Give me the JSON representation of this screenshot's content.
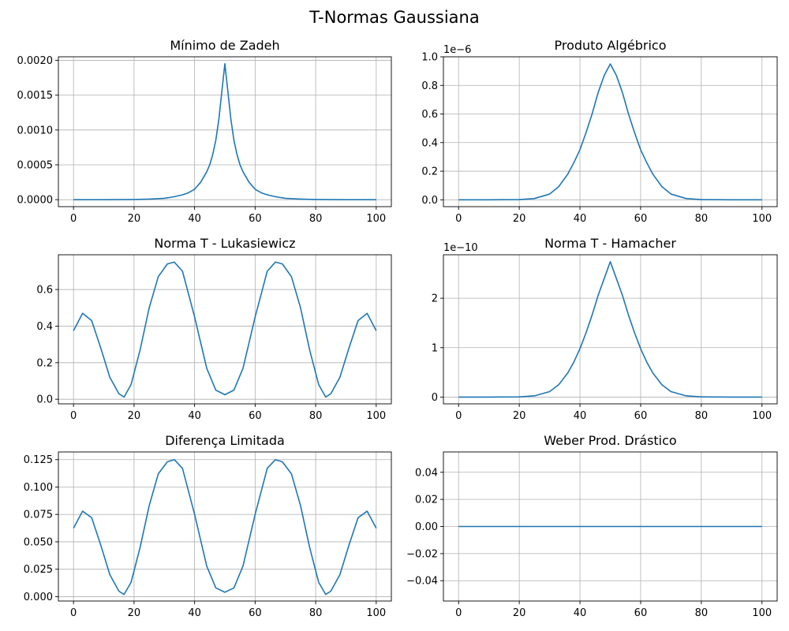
{
  "figure_title": "T-Normas Gaussiana",
  "colors": {
    "line": "#1f77b4",
    "grid": "#b0b0b0",
    "axes": "#000000"
  },
  "chart_data": [
    {
      "type": "line",
      "title": "Mínimo de Zadeh",
      "xlim": [
        -5,
        105
      ],
      "ylim": [
        -0.0001,
        0.00205
      ],
      "xticks": [
        0,
        20,
        40,
        60,
        80,
        100
      ],
      "yticks": [
        0,
        0.0005,
        0.001,
        0.0015,
        0.002
      ],
      "ytick_labels": [
        "0.0000",
        "0.0005",
        "0.0010",
        "0.0015",
        "0.0020"
      ],
      "offset_label": "",
      "grid": true,
      "x": [
        0,
        10,
        20,
        25,
        30,
        33,
        36,
        38,
        40,
        42,
        44,
        45,
        46,
        47,
        48,
        49,
        50,
        51,
        52,
        53,
        54,
        55,
        56,
        58,
        60,
        62,
        64,
        67,
        70,
        75,
        80,
        90,
        100
      ],
      "y": [
        0,
        0,
        3e-06,
        8e-06,
        2e-05,
        4e-05,
        7e-05,
        0.0001,
        0.00015,
        0.00025,
        0.0004,
        0.0005,
        0.00065,
        0.00085,
        0.00115,
        0.00155,
        0.00195,
        0.00155,
        0.00115,
        0.00085,
        0.00065,
        0.0005,
        0.0004,
        0.00025,
        0.00015,
        0.0001,
        7e-05,
        4e-05,
        2e-05,
        8e-06,
        3e-06,
        0,
        0
      ]
    },
    {
      "type": "line",
      "title": "Produto Algébrico",
      "xlim": [
        -5,
        105
      ],
      "ylim": [
        -0.048,
        1.0
      ],
      "xticks": [
        0,
        20,
        40,
        60,
        80,
        100
      ],
      "yticks": [
        0,
        0.2,
        0.4,
        0.6,
        0.8,
        1.0
      ],
      "ytick_labels": [
        "0.0",
        "0.2",
        "0.4",
        "0.6",
        "0.8",
        "1.0"
      ],
      "offset_label": "1e−6",
      "grid": true,
      "x": [
        0,
        10,
        20,
        25,
        30,
        33,
        36,
        38,
        40,
        42,
        44,
        46,
        48,
        50,
        52,
        54,
        56,
        58,
        60,
        62,
        64,
        67,
        70,
        75,
        80,
        90,
        100
      ],
      "y": [
        0,
        0,
        0.0011,
        0.009,
        0.04,
        0.092,
        0.18,
        0.26,
        0.35,
        0.47,
        0.6,
        0.75,
        0.87,
        0.95,
        0.87,
        0.75,
        0.6,
        0.47,
        0.35,
        0.26,
        0.18,
        0.092,
        0.04,
        0.009,
        0.0011,
        0,
        0
      ]
    },
    {
      "type": "line",
      "title": "Norma T - Lukasiewicz",
      "xlim": [
        -5,
        105
      ],
      "ylim": [
        -0.025,
        0.79
      ],
      "xticks": [
        0,
        20,
        40,
        60,
        80,
        100
      ],
      "yticks": [
        0,
        0.2,
        0.4,
        0.6
      ],
      "ytick_labels": [
        "0.0",
        "0.2",
        "0.4",
        "0.6"
      ],
      "offset_label": "",
      "grid": true,
      "x": [
        0,
        3,
        6,
        9,
        12,
        15,
        16.7,
        19,
        22,
        25,
        28,
        31,
        33.3,
        36,
        40,
        44,
        47,
        50,
        53,
        56,
        60,
        64,
        66.7,
        69,
        72,
        75,
        78,
        81,
        83.3,
        85,
        88,
        91,
        94,
        97,
        100
      ],
      "y": [
        0.375,
        0.47,
        0.43,
        0.28,
        0.12,
        0.03,
        0.012,
        0.08,
        0.27,
        0.5,
        0.67,
        0.74,
        0.75,
        0.7,
        0.45,
        0.17,
        0.05,
        0.025,
        0.05,
        0.17,
        0.45,
        0.7,
        0.75,
        0.74,
        0.67,
        0.5,
        0.27,
        0.08,
        0.012,
        0.03,
        0.12,
        0.28,
        0.43,
        0.47,
        0.375
      ]
    },
    {
      "type": "line",
      "title": "Norma T - Hamacher",
      "xlim": [
        -5,
        105
      ],
      "ylim": [
        -0.137,
        2.88
      ],
      "xticks": [
        0,
        20,
        40,
        60,
        80,
        100
      ],
      "yticks": [
        0,
        1,
        2
      ],
      "ytick_labels": [
        "0",
        "1",
        "2"
      ],
      "offset_label": "1e−10",
      "grid": true,
      "x": [
        0,
        10,
        20,
        25,
        30,
        33,
        36,
        38,
        40,
        42,
        44,
        46,
        48,
        50,
        52,
        54,
        56,
        58,
        60,
        62,
        64,
        67,
        70,
        75,
        80,
        90,
        100
      ],
      "y": [
        0,
        0,
        0.003,
        0.025,
        0.11,
        0.25,
        0.49,
        0.71,
        0.98,
        1.3,
        1.66,
        2.06,
        2.4,
        2.74,
        2.4,
        2.06,
        1.66,
        1.3,
        0.98,
        0.71,
        0.49,
        0.25,
        0.11,
        0.025,
        0.003,
        0,
        0
      ]
    },
    {
      "type": "line",
      "title": "Diferença Limitada",
      "xlim": [
        -5,
        105
      ],
      "ylim": [
        -0.004,
        0.132
      ],
      "xticks": [
        0,
        20,
        40,
        60,
        80,
        100
      ],
      "yticks": [
        0,
        0.025,
        0.05,
        0.075,
        0.1,
        0.125
      ],
      "ytick_labels": [
        "0.000",
        "0.025",
        "0.050",
        "0.075",
        "0.100",
        "0.125"
      ],
      "offset_label": "",
      "grid": true,
      "x": [
        0,
        3,
        6,
        9,
        12,
        15,
        16.7,
        19,
        22,
        25,
        28,
        31,
        33.3,
        36,
        40,
        44,
        47,
        50,
        53,
        56,
        60,
        64,
        66.7,
        69,
        72,
        75,
        78,
        81,
        83.3,
        85,
        88,
        91,
        94,
        97,
        100
      ],
      "y": [
        0.0625,
        0.078,
        0.072,
        0.047,
        0.02,
        0.005,
        0.002,
        0.013,
        0.045,
        0.083,
        0.112,
        0.123,
        0.125,
        0.117,
        0.075,
        0.028,
        0.008,
        0.004,
        0.008,
        0.028,
        0.075,
        0.117,
        0.125,
        0.123,
        0.112,
        0.083,
        0.045,
        0.013,
        0.002,
        0.005,
        0.02,
        0.047,
        0.072,
        0.078,
        0.0625
      ]
    },
    {
      "type": "line",
      "title": "Weber Prod. Drástico",
      "xlim": [
        -5,
        105
      ],
      "ylim": [
        -0.055,
        0.055
      ],
      "xticks": [
        0,
        20,
        40,
        60,
        80,
        100
      ],
      "yticks": [
        -0.04,
        -0.02,
        0,
        0.02,
        0.04
      ],
      "ytick_labels": [
        "−0.04",
        "−0.02",
        "0.00",
        "0.02",
        "0.04"
      ],
      "offset_label": "",
      "grid": true,
      "x": [
        0,
        100
      ],
      "y": [
        0,
        0
      ]
    }
  ]
}
